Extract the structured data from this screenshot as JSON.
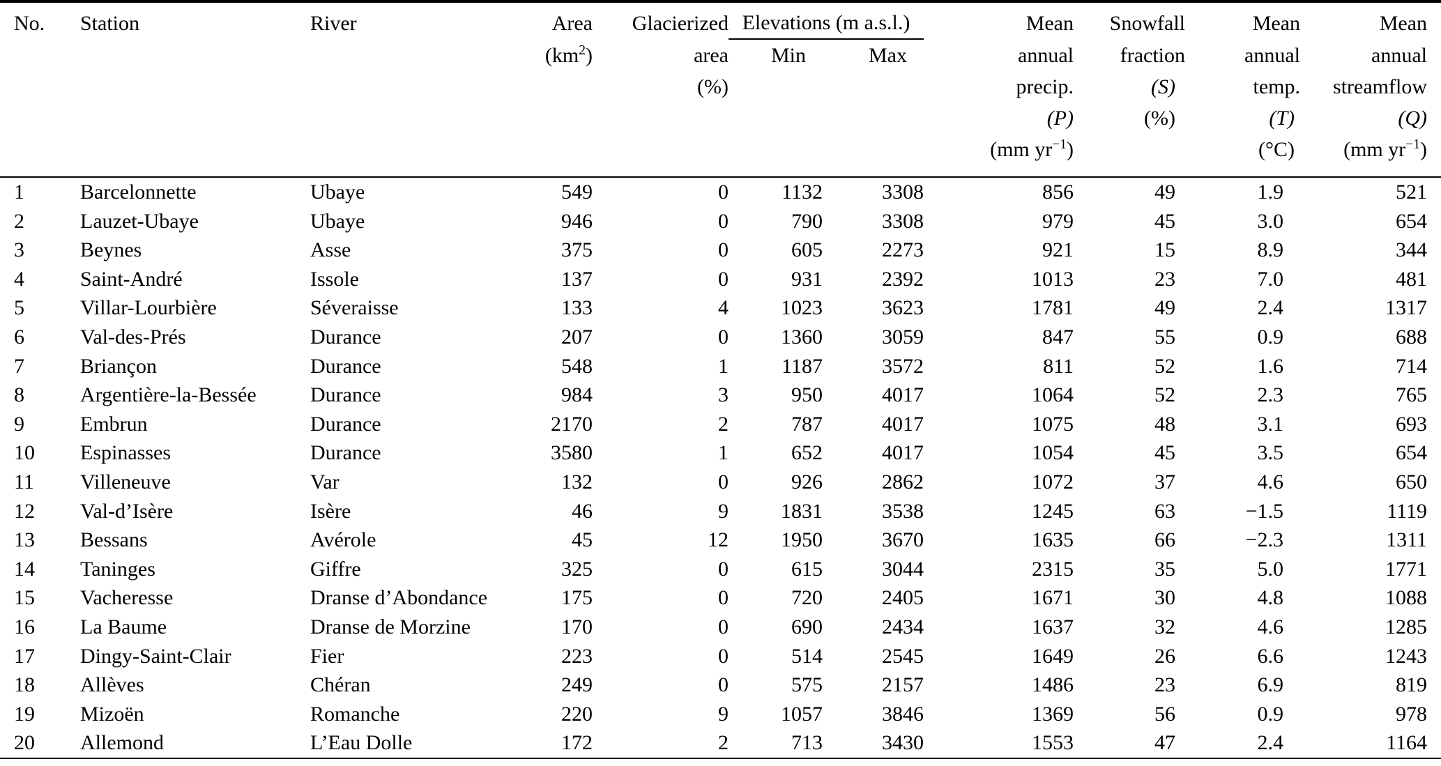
{
  "colors": {
    "background": "#ffffff",
    "text": "#000000",
    "rule": "#000000"
  },
  "table": {
    "header": {
      "no": "No.",
      "station": "Station",
      "river": "River",
      "area": {
        "label": "Area",
        "unit_pre": "(km",
        "unit_sup": "2",
        "unit_post": ")"
      },
      "glacierized": {
        "line1": "Glacierized",
        "line2": "area",
        "line3": "(%)"
      },
      "elevations": {
        "group": "Elevations (m a.s.l.)",
        "min": "Min",
        "max": "Max"
      },
      "precip": {
        "line1": "Mean",
        "line2": "annual",
        "line3": "precip.",
        "line4": "(P)",
        "unit_pre": "(mm yr",
        "unit_sup": "−1",
        "unit_post": ")"
      },
      "snowfall": {
        "line1": "Snowfall",
        "line2": "fraction",
        "line3": "(S)",
        "line4": "(%)"
      },
      "temp": {
        "line1": "Mean",
        "line2": "annual",
        "line3": "temp.",
        "line4": "(T)",
        "line5": "(°C)"
      },
      "flow": {
        "line1": "Mean",
        "line2": "annual",
        "line3": "streamflow",
        "line4": "(Q)",
        "unit_pre": "(mm yr",
        "unit_sup": "−1",
        "unit_post": ")"
      }
    },
    "columns": [
      {
        "key": "no",
        "align": "left"
      },
      {
        "key": "station",
        "align": "left"
      },
      {
        "key": "river",
        "align": "left"
      },
      {
        "key": "area",
        "align": "right"
      },
      {
        "key": "glac",
        "align": "right"
      },
      {
        "key": "min",
        "align": "right"
      },
      {
        "key": "max",
        "align": "right"
      },
      {
        "key": "precip",
        "align": "right"
      },
      {
        "key": "snow",
        "align": "right"
      },
      {
        "key": "temp",
        "align": "right"
      },
      {
        "key": "flow",
        "align": "right"
      }
    ],
    "rows": [
      [
        "1",
        "Barcelonnette",
        "Ubaye",
        "549",
        "0",
        "1132",
        "3308",
        "856",
        "49",
        "1.9",
        "521"
      ],
      [
        "2",
        "Lauzet-Ubaye",
        "Ubaye",
        "946",
        "0",
        "790",
        "3308",
        "979",
        "45",
        "3.0",
        "654"
      ],
      [
        "3",
        "Beynes",
        "Asse",
        "375",
        "0",
        "605",
        "2273",
        "921",
        "15",
        "8.9",
        "344"
      ],
      [
        "4",
        "Saint-André",
        "Issole",
        "137",
        "0",
        "931",
        "2392",
        "1013",
        "23",
        "7.0",
        "481"
      ],
      [
        "5",
        "Villar-Lourbière",
        "Séveraisse",
        "133",
        "4",
        "1023",
        "3623",
        "1781",
        "49",
        "2.4",
        "1317"
      ],
      [
        "6",
        "Val-des-Prés",
        "Durance",
        "207",
        "0",
        "1360",
        "3059",
        "847",
        "55",
        "0.9",
        "688"
      ],
      [
        "7",
        "Briançon",
        "Durance",
        "548",
        "1",
        "1187",
        "3572",
        "811",
        "52",
        "1.6",
        "714"
      ],
      [
        "8",
        "Argentière-la-Bessée",
        "Durance",
        "984",
        "3",
        "950",
        "4017",
        "1064",
        "52",
        "2.3",
        "765"
      ],
      [
        "9",
        "Embrun",
        "Durance",
        "2170",
        "2",
        "787",
        "4017",
        "1075",
        "48",
        "3.1",
        "693"
      ],
      [
        "10",
        "Espinasses",
        "Durance",
        "3580",
        "1",
        "652",
        "4017",
        "1054",
        "45",
        "3.5",
        "654"
      ],
      [
        "11",
        "Villeneuve",
        "Var",
        "132",
        "0",
        "926",
        "2862",
        "1072",
        "37",
        "4.6",
        "650"
      ],
      [
        "12",
        "Val-d’Isère",
        "Isère",
        "46",
        "9",
        "1831",
        "3538",
        "1245",
        "63",
        "−1.5",
        "1119"
      ],
      [
        "13",
        "Bessans",
        "Avérole",
        "45",
        "12",
        "1950",
        "3670",
        "1635",
        "66",
        "−2.3",
        "1311"
      ],
      [
        "14",
        "Taninges",
        "Giffre",
        "325",
        "0",
        "615",
        "3044",
        "2315",
        "35",
        "5.0",
        "1771"
      ],
      [
        "15",
        "Vacheresse",
        "Dranse d’Abondance",
        "175",
        "0",
        "720",
        "2405",
        "1671",
        "30",
        "4.8",
        "1088"
      ],
      [
        "16",
        "La Baume",
        "Dranse de Morzine",
        "170",
        "0",
        "690",
        "2434",
        "1637",
        "32",
        "4.6",
        "1285"
      ],
      [
        "17",
        "Dingy-Saint-Clair",
        "Fier",
        "223",
        "0",
        "514",
        "2545",
        "1649",
        "26",
        "6.6",
        "1243"
      ],
      [
        "18",
        "Allèves",
        "Chéran",
        "249",
        "0",
        "575",
        "2157",
        "1486",
        "23",
        "6.9",
        "819"
      ],
      [
        "19",
        "Mizoën",
        "Romanche",
        "220",
        "9",
        "1057",
        "3846",
        "1369",
        "56",
        "0.9",
        "978"
      ],
      [
        "20",
        "Allemond",
        "L’Eau Dolle",
        "172",
        "2",
        "713",
        "3430",
        "1553",
        "47",
        "2.4",
        "1164"
      ]
    ]
  }
}
